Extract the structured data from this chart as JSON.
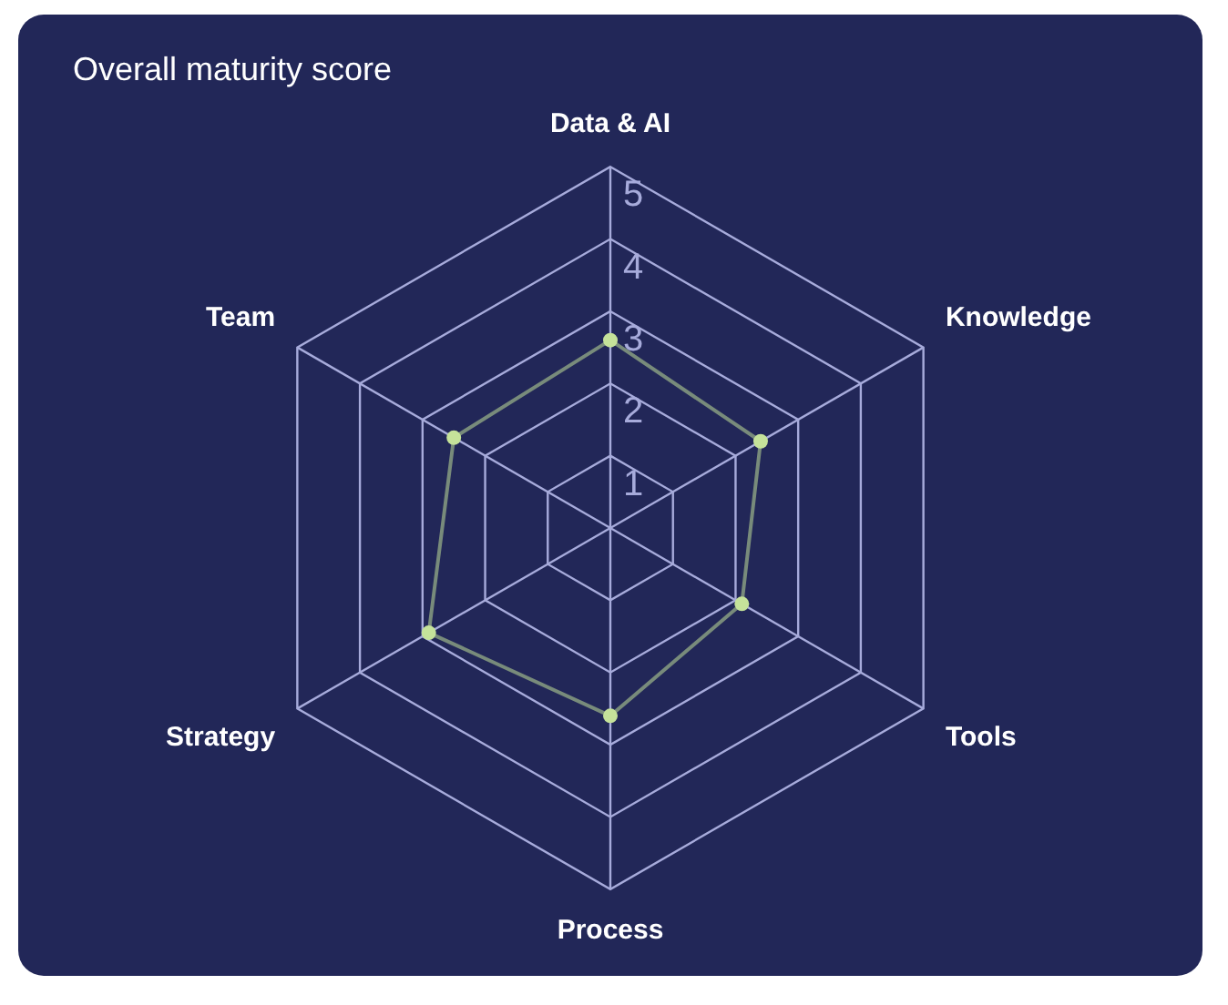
{
  "chart_data": {
    "type": "radar",
    "title": "Overall maturity score",
    "categories": [
      "Data & AI",
      "Knowledge",
      "Tools",
      "Process",
      "Strategy",
      "Team"
    ],
    "series": [
      {
        "color": "#c5e29a",
        "values": [
          2.6,
          2.4,
          2.1,
          2.6,
          2.9,
          2.5
        ]
      }
    ],
    "ylim": [
      0,
      5
    ],
    "yticks": [
      1,
      2,
      3,
      4,
      5
    ],
    "marker": "circle",
    "grid": true,
    "legend": false
  }
}
